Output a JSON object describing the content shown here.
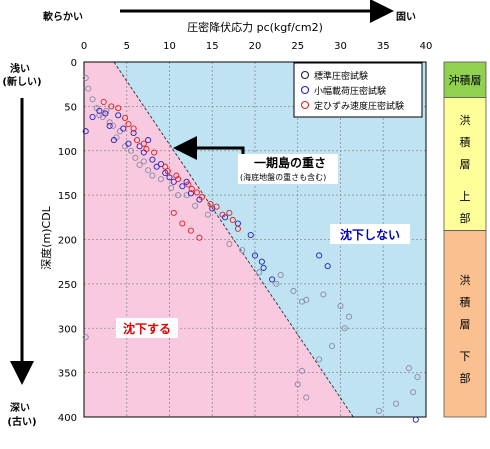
{
  "chart_data": {
    "type": "scatter",
    "title": "",
    "xlabel": "圧密降伏応力 pc(kgf/cm2)",
    "ylabel": "深度(m)CDL",
    "xlim": [
      0,
      40
    ],
    "ylim": [
      0,
      400
    ],
    "x_ticks": [
      0,
      5,
      10,
      15,
      20,
      25,
      30,
      35,
      40
    ],
    "y_ticks": [
      0,
      50,
      100,
      150,
      200,
      250,
      300,
      350,
      400
    ],
    "x_axis_hardness": {
      "left": "軟らかい",
      "right": "固い"
    },
    "y_axis_age": {
      "top": [
        "浅い",
        "(新しい)"
      ],
      "bottom": [
        "深い",
        "(古い)"
      ]
    },
    "grid": true,
    "legend": "top-right",
    "boundary_line": {
      "x": [
        3.5,
        31.5
      ],
      "y": [
        0,
        400
      ]
    },
    "regions": {
      "settle": {
        "label": "沈下する",
        "color": "#f9c9df"
      },
      "no_settle": {
        "label": "沈下しない",
        "color": "#bfe3f3"
      }
    },
    "annotation": {
      "main": "一期島の重さ",
      "sub": "(海底地盤の重さも含む)",
      "arrow_x": 10.2,
      "arrow_y": 100
    },
    "series": [
      {
        "name": "標準圧密試験",
        "color": "#8a8aa8",
        "points": [
          [
            0.2,
            18
          ],
          [
            0.5,
            30
          ],
          [
            1.0,
            42
          ],
          [
            1.5,
            52
          ],
          [
            1.8,
            60
          ],
          [
            2.2,
            62
          ],
          [
            2.6,
            55
          ],
          [
            3.0,
            68
          ],
          [
            3.4,
            72
          ],
          [
            3.8,
            85
          ],
          [
            4.2,
            78
          ],
          [
            4.8,
            95
          ],
          [
            5.5,
            100
          ],
          [
            6.0,
            108
          ],
          [
            6.5,
            116
          ],
          [
            7.0,
            112
          ],
          [
            7.5,
            122
          ],
          [
            8.0,
            128
          ],
          [
            9.0,
            132
          ],
          [
            10.2,
            142
          ],
          [
            11.0,
            150
          ],
          [
            12.0,
            150
          ],
          [
            13.0,
            162
          ],
          [
            14.5,
            172
          ],
          [
            17.0,
            205
          ],
          [
            18.5,
            212
          ],
          [
            20.5,
            237
          ],
          [
            22.5,
            250
          ],
          [
            23.0,
            240
          ],
          [
            24.5,
            258
          ],
          [
            25.5,
            270
          ],
          [
            26.0,
            268
          ],
          [
            28.0,
            262
          ],
          [
            30.0,
            275
          ],
          [
            31.0,
            287
          ],
          [
            30.5,
            300
          ],
          [
            29.0,
            320
          ],
          [
            27.5,
            335
          ],
          [
            25.5,
            348
          ],
          [
            25.0,
            363
          ],
          [
            26.0,
            378
          ],
          [
            38.0,
            345
          ],
          [
            39.0,
            355
          ],
          [
            38.5,
            372
          ],
          [
            36.5,
            385
          ],
          [
            34.5,
            393
          ],
          [
            0.2,
            310
          ]
        ]
      },
      {
        "name": "小幅載荷圧密試験",
        "color": "#2020c0",
        "points": [
          [
            0.2,
            78
          ],
          [
            1.0,
            62
          ],
          [
            1.8,
            55
          ],
          [
            2.5,
            58
          ],
          [
            3.0,
            72
          ],
          [
            3.5,
            88
          ],
          [
            4.0,
            60
          ],
          [
            4.6,
            75
          ],
          [
            5.2,
            92
          ],
          [
            5.8,
            80
          ],
          [
            6.5,
            95
          ],
          [
            7.0,
            102
          ],
          [
            7.5,
            88
          ],
          [
            8.0,
            110
          ],
          [
            8.5,
            118
          ],
          [
            9.0,
            115
          ],
          [
            9.5,
            125
          ],
          [
            10.0,
            130
          ],
          [
            10.5,
            135
          ],
          [
            11.5,
            140
          ],
          [
            12.0,
            135
          ],
          [
            12.5,
            148
          ],
          [
            13.5,
            155
          ],
          [
            15.0,
            165
          ],
          [
            16.5,
            175
          ],
          [
            18.0,
            182
          ],
          [
            19.5,
            195
          ],
          [
            20.0,
            218
          ],
          [
            20.8,
            225
          ],
          [
            21.0,
            232
          ],
          [
            22.0,
            245
          ],
          [
            27.5,
            218
          ],
          [
            28.5,
            230
          ],
          [
            38.8,
            403
          ]
        ]
      },
      {
        "name": "定ひずみ速度圧密試験",
        "color": "#e02020",
        "points": [
          [
            2.3,
            45
          ],
          [
            3.2,
            50
          ],
          [
            4.0,
            52
          ],
          [
            4.8,
            63
          ],
          [
            5.2,
            70
          ],
          [
            5.8,
            75
          ],
          [
            6.2,
            88
          ],
          [
            7.0,
            92
          ],
          [
            7.3,
            98
          ],
          [
            8.2,
            102
          ],
          [
            9.5,
            118
          ],
          [
            9.8,
            123
          ],
          [
            10.8,
            128
          ],
          [
            11.0,
            132
          ],
          [
            12.2,
            138
          ],
          [
            12.6,
            143
          ],
          [
            13.2,
            147
          ],
          [
            13.8,
            152
          ],
          [
            14.8,
            160
          ],
          [
            15.5,
            163
          ],
          [
            16.2,
            172
          ],
          [
            17.0,
            170
          ],
          [
            17.4,
            178
          ],
          [
            18.0,
            188
          ],
          [
            10.5,
            170
          ],
          [
            11.5,
            182
          ],
          [
            12.5,
            190
          ],
          [
            13.5,
            198
          ]
        ]
      }
    ]
  },
  "strata": [
    {
      "label": "沖積層",
      "from": 0,
      "to": 40,
      "color": "#92d050"
    },
    {
      "label": "洪積層上部",
      "from": 40,
      "to": 190,
      "color": "#ffff99"
    },
    {
      "label": "洪積層下部",
      "from": 190,
      "to": 400,
      "color": "#fac090"
    }
  ]
}
